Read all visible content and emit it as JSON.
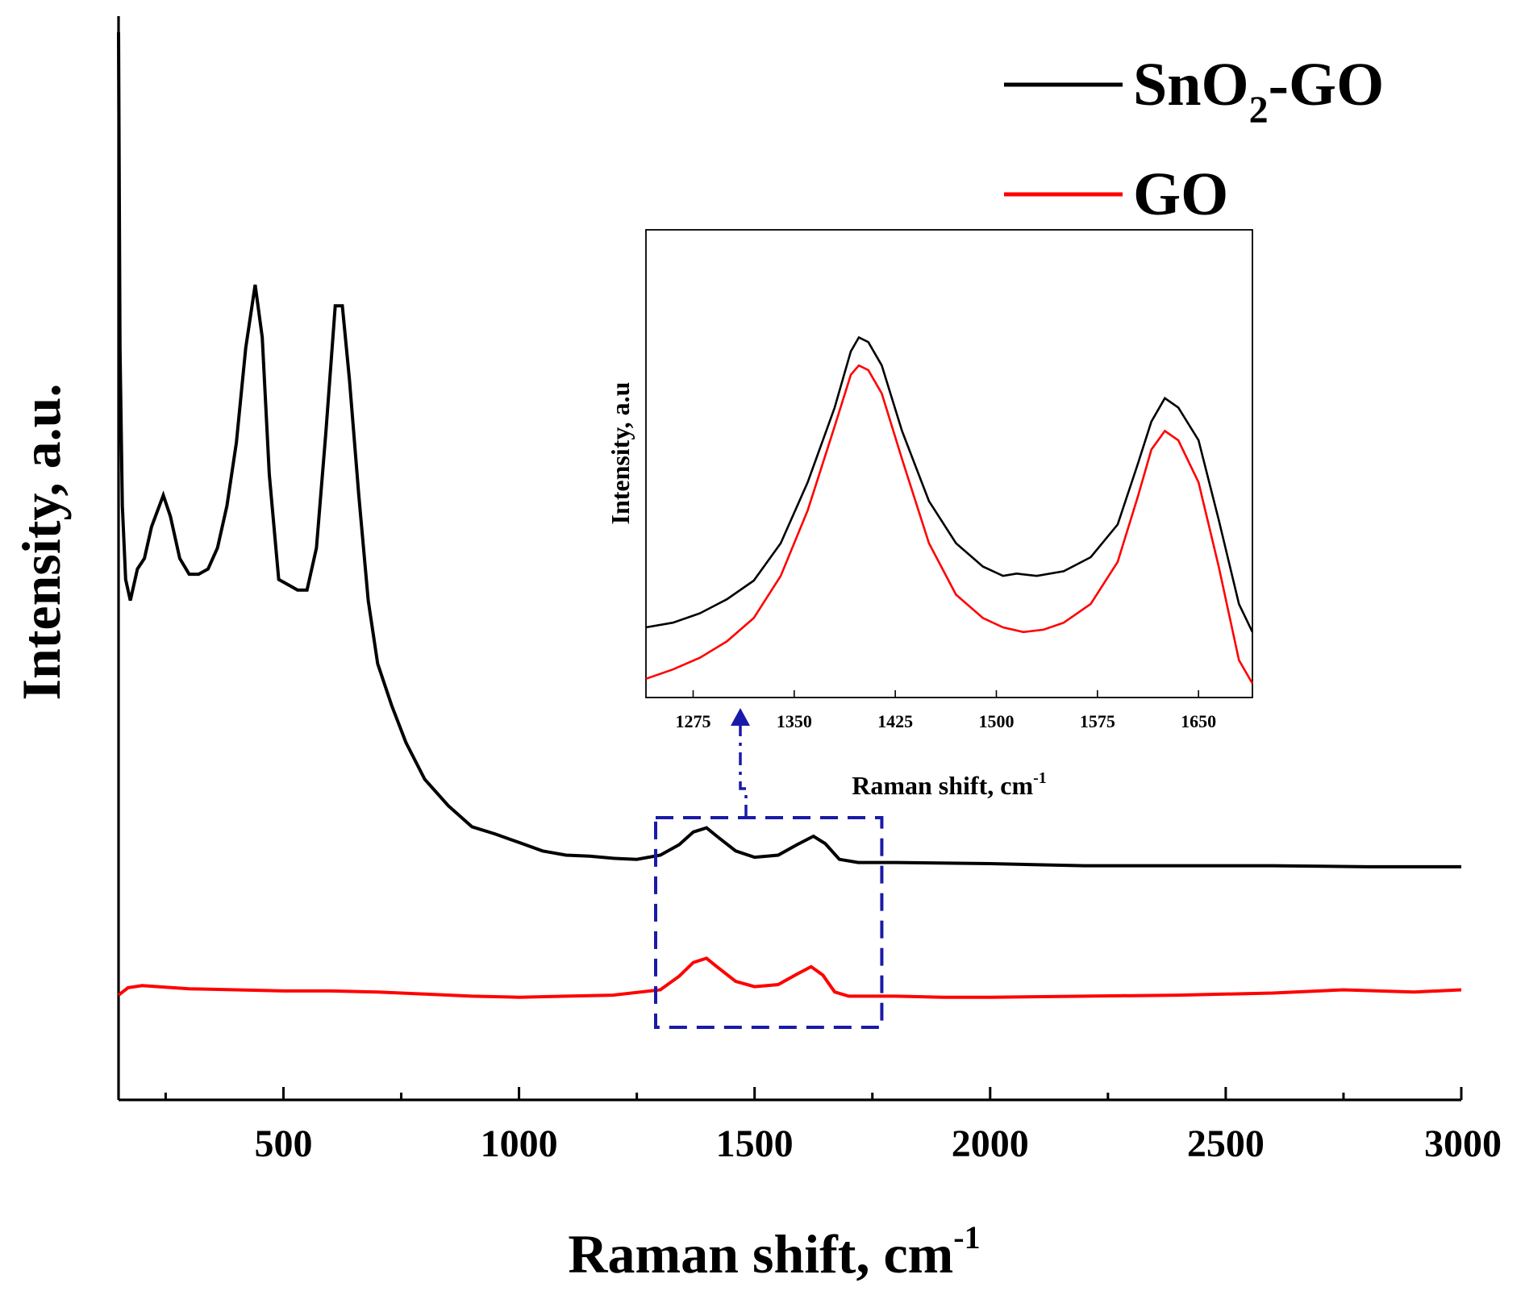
{
  "chart_data": {
    "type": "line",
    "title": "",
    "xlabel": "Raman shift, cm",
    "xlabel_sup": "-1",
    "ylabel": "Intensity, a.u.",
    "xlim": [
      150,
      3000
    ],
    "ylim": [
      0,
      1
    ],
    "x_ticks": [
      500,
      1000,
      1500,
      2000,
      2500,
      3000
    ],
    "x_tick_labels": [
      "500",
      "1000",
      "1500",
      "2000",
      "2500",
      "3000"
    ],
    "legend": {
      "location": "top-right",
      "entries": [
        {
          "name": "SnO",
          "sub": "2",
          "suffix": "-GO",
          "color": "#000000"
        },
        {
          "name": "GO",
          "sub": "",
          "suffix": "",
          "color": "#ff0000"
        }
      ]
    },
    "series": [
      {
        "name": "SnO2-GO",
        "color": "#000000",
        "points": [
          [
            150,
            1.0
          ],
          [
            153,
            0.7
          ],
          [
            158,
            0.55
          ],
          [
            165,
            0.48
          ],
          [
            175,
            0.46
          ],
          [
            190,
            0.49
          ],
          [
            205,
            0.5
          ],
          [
            220,
            0.53
          ],
          [
            245,
            0.56
          ],
          [
            260,
            0.54
          ],
          [
            280,
            0.5
          ],
          [
            300,
            0.485
          ],
          [
            320,
            0.485
          ],
          [
            340,
            0.49
          ],
          [
            360,
            0.51
          ],
          [
            380,
            0.55
          ],
          [
            400,
            0.61
          ],
          [
            420,
            0.7
          ],
          [
            440,
            0.76
          ],
          [
            455,
            0.71
          ],
          [
            470,
            0.58
          ],
          [
            490,
            0.48
          ],
          [
            510,
            0.475
          ],
          [
            530,
            0.47
          ],
          [
            550,
            0.47
          ],
          [
            570,
            0.51
          ],
          [
            590,
            0.62
          ],
          [
            610,
            0.74
          ],
          [
            625,
            0.74
          ],
          [
            640,
            0.67
          ],
          [
            660,
            0.56
          ],
          [
            680,
            0.46
          ],
          [
            700,
            0.4
          ],
          [
            730,
            0.36
          ],
          [
            760,
            0.325
          ],
          [
            800,
            0.29
          ],
          [
            850,
            0.265
          ],
          [
            900,
            0.245
          ],
          [
            950,
            0.238
          ],
          [
            1000,
            0.23
          ],
          [
            1050,
            0.222
          ],
          [
            1100,
            0.218
          ],
          [
            1150,
            0.217
          ],
          [
            1200,
            0.215
          ],
          [
            1250,
            0.214
          ],
          [
            1300,
            0.218
          ],
          [
            1340,
            0.228
          ],
          [
            1370,
            0.24
          ],
          [
            1398,
            0.244
          ],
          [
            1420,
            0.236
          ],
          [
            1460,
            0.222
          ],
          [
            1500,
            0.216
          ],
          [
            1550,
            0.218
          ],
          [
            1590,
            0.228
          ],
          [
            1625,
            0.236
          ],
          [
            1650,
            0.229
          ],
          [
            1680,
            0.214
          ],
          [
            1720,
            0.211
          ],
          [
            1800,
            0.211
          ],
          [
            2000,
            0.21
          ],
          [
            2200,
            0.208
          ],
          [
            2400,
            0.208
          ],
          [
            2600,
            0.208
          ],
          [
            2800,
            0.207
          ],
          [
            3000,
            0.207
          ]
        ]
      },
      {
        "name": "GO",
        "color": "#ff0000",
        "points": [
          [
            150,
            0.085
          ],
          [
            170,
            0.092
          ],
          [
            200,
            0.094
          ],
          [
            300,
            0.091
          ],
          [
            400,
            0.09
          ],
          [
            500,
            0.089
          ],
          [
            600,
            0.089
          ],
          [
            700,
            0.088
          ],
          [
            800,
            0.086
          ],
          [
            900,
            0.084
          ],
          [
            1000,
            0.083
          ],
          [
            1100,
            0.084
          ],
          [
            1200,
            0.085
          ],
          [
            1300,
            0.09
          ],
          [
            1340,
            0.103
          ],
          [
            1370,
            0.116
          ],
          [
            1398,
            0.12
          ],
          [
            1420,
            0.112
          ],
          [
            1460,
            0.098
          ],
          [
            1500,
            0.093
          ],
          [
            1550,
            0.095
          ],
          [
            1590,
            0.105
          ],
          [
            1620,
            0.112
          ],
          [
            1645,
            0.104
          ],
          [
            1670,
            0.088
          ],
          [
            1700,
            0.084
          ],
          [
            1800,
            0.084
          ],
          [
            1900,
            0.083
          ],
          [
            2000,
            0.083
          ],
          [
            2200,
            0.084
          ],
          [
            2400,
            0.085
          ],
          [
            2600,
            0.087
          ],
          [
            2750,
            0.09
          ],
          [
            2900,
            0.088
          ],
          [
            3000,
            0.09
          ]
        ]
      }
    ],
    "zoom_box_x": [
      1290,
      1770
    ],
    "inset": {
      "xlabel": "Raman shift, cm",
      "xlabel_sup": "-1",
      "ylabel": "Intensity, a.u",
      "xlim": [
        1240,
        1690
      ],
      "ylim": [
        0,
        1
      ],
      "x_ticks": [
        1275,
        1350,
        1425,
        1500,
        1575,
        1650
      ],
      "x_tick_labels": [
        "1275",
        "1350",
        "1425",
        "1500",
        "1575",
        "1650"
      ],
      "series": [
        {
          "name": "SnO2-GO",
          "color": "#000000",
          "points": [
            [
              1240,
              0.15
            ],
            [
              1260,
              0.16
            ],
            [
              1280,
              0.18
            ],
            [
              1300,
              0.21
            ],
            [
              1320,
              0.25
            ],
            [
              1340,
              0.33
            ],
            [
              1360,
              0.46
            ],
            [
              1380,
              0.62
            ],
            [
              1392,
              0.74
            ],
            [
              1398,
              0.77
            ],
            [
              1405,
              0.76
            ],
            [
              1415,
              0.71
            ],
            [
              1430,
              0.57
            ],
            [
              1450,
              0.42
            ],
            [
              1470,
              0.33
            ],
            [
              1490,
              0.28
            ],
            [
              1505,
              0.26
            ],
            [
              1515,
              0.265
            ],
            [
              1530,
              0.26
            ],
            [
              1550,
              0.27
            ],
            [
              1570,
              0.3
            ],
            [
              1590,
              0.37
            ],
            [
              1605,
              0.5
            ],
            [
              1615,
              0.59
            ],
            [
              1625,
              0.64
            ],
            [
              1635,
              0.62
            ],
            [
              1650,
              0.55
            ],
            [
              1665,
              0.38
            ],
            [
              1680,
              0.2
            ],
            [
              1690,
              0.14
            ]
          ]
        },
        {
          "name": "GO",
          "color": "#ff0000",
          "points": [
            [
              1240,
              0.04
            ],
            [
              1260,
              0.06
            ],
            [
              1280,
              0.085
            ],
            [
              1300,
              0.12
            ],
            [
              1320,
              0.17
            ],
            [
              1340,
              0.26
            ],
            [
              1360,
              0.4
            ],
            [
              1380,
              0.58
            ],
            [
              1392,
              0.69
            ],
            [
              1398,
              0.71
            ],
            [
              1405,
              0.7
            ],
            [
              1415,
              0.65
            ],
            [
              1430,
              0.51
            ],
            [
              1450,
              0.33
            ],
            [
              1470,
              0.22
            ],
            [
              1490,
              0.17
            ],
            [
              1505,
              0.15
            ],
            [
              1520,
              0.14
            ],
            [
              1535,
              0.145
            ],
            [
              1550,
              0.16
            ],
            [
              1570,
              0.2
            ],
            [
              1590,
              0.29
            ],
            [
              1605,
              0.43
            ],
            [
              1615,
              0.53
            ],
            [
              1625,
              0.57
            ],
            [
              1635,
              0.55
            ],
            [
              1650,
              0.46
            ],
            [
              1665,
              0.28
            ],
            [
              1680,
              0.08
            ],
            [
              1690,
              0.03
            ]
          ]
        }
      ]
    }
  }
}
